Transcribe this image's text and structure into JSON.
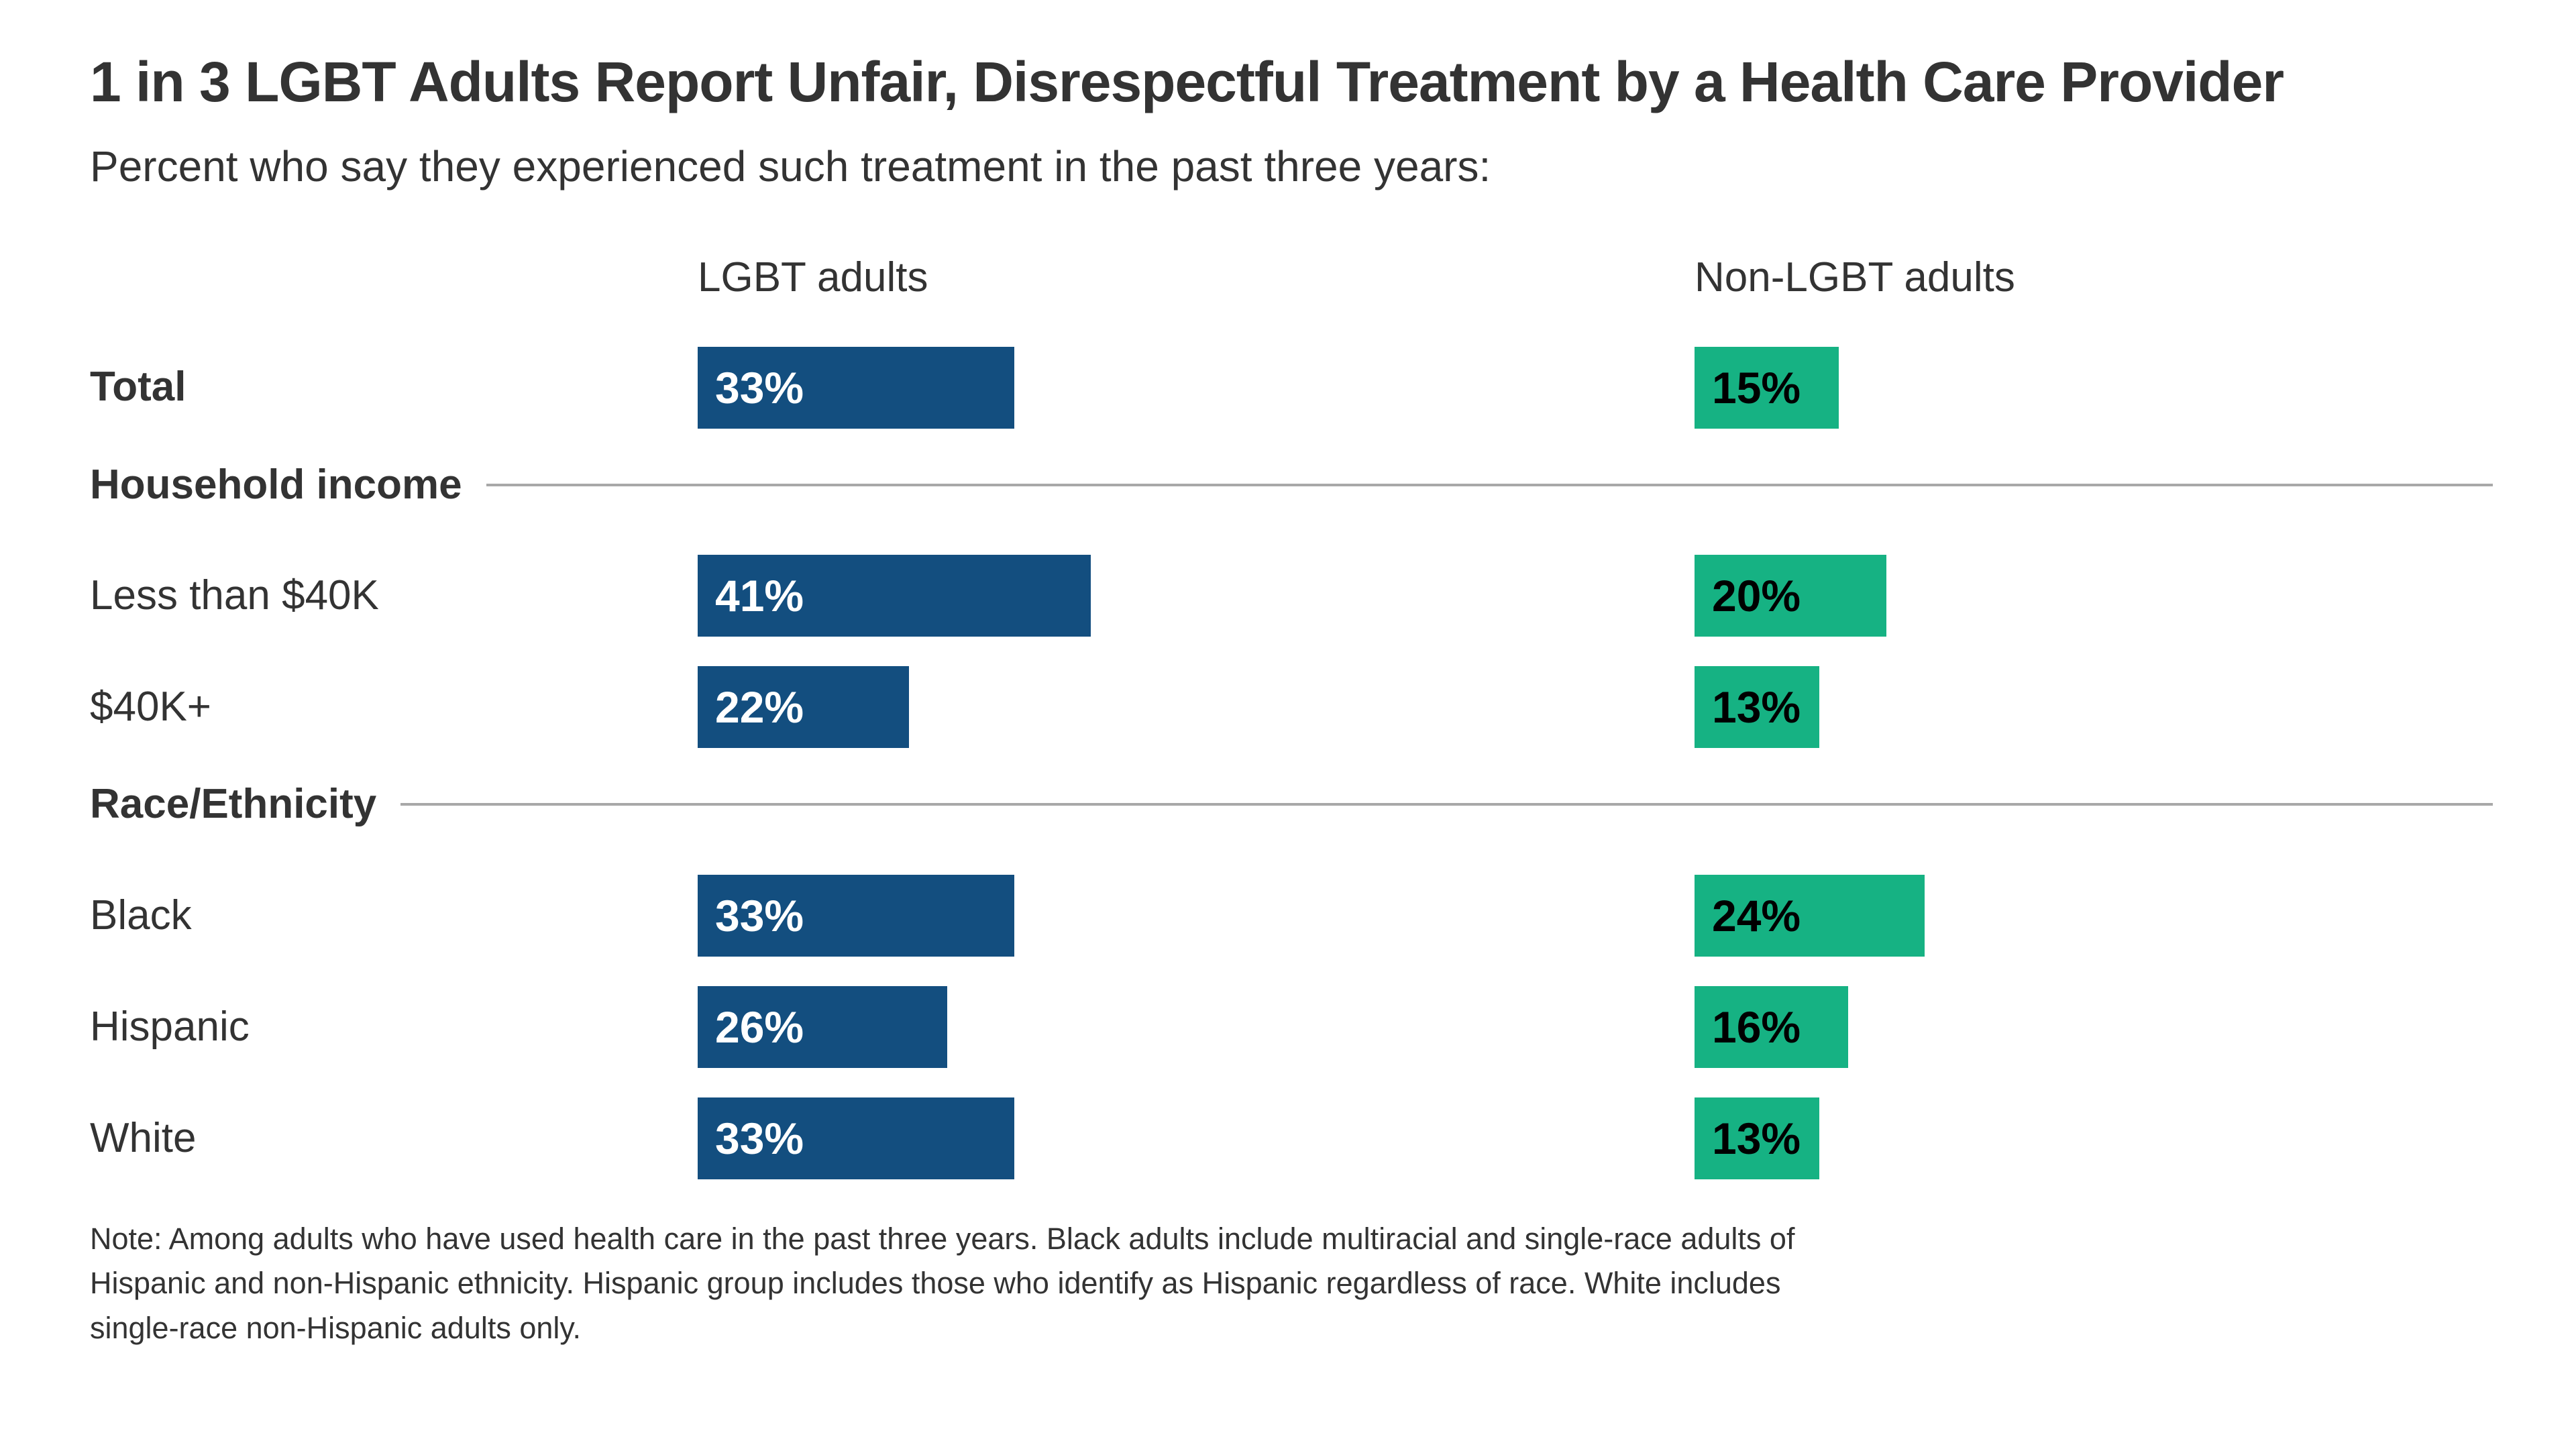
{
  "colors": {
    "text": "#333333",
    "divider": "#A8A8A8",
    "lgbt_bar": "#134E7F",
    "lgbt_bar_label": "#FFFFFF",
    "non_lgbt_bar": "#16B283",
    "non_lgbt_bar_label": "#000000",
    "background": "#FFFFFF"
  },
  "chart_data": {
    "type": "bar",
    "orientation": "horizontal",
    "title": "1 in 3 LGBT Adults Report Unfair, Disrespectful Treatment by a Health Care Provider",
    "subtitle": "Percent who say they experienced such treatment in the past three years:",
    "value_unit": "percent",
    "value_suffix": "%",
    "grid": false,
    "axes": "none (values labeled directly on bars)",
    "legend_position": "column headers above each bar column",
    "series": [
      {
        "name": "LGBT adults",
        "color": "#134E7F",
        "label_color": "#FFFFFF"
      },
      {
        "name": "Non-LGBT adults",
        "color": "#16B283",
        "label_color": "#000000"
      }
    ],
    "groups": [
      {
        "section": null,
        "rows": [
          {
            "label": "Total",
            "values": [
              33,
              15
            ]
          }
        ]
      },
      {
        "section": "Household income",
        "rows": [
          {
            "label": "Less than $40K",
            "values": [
              41,
              20
            ]
          },
          {
            "label": "$40K+",
            "values": [
              22,
              13
            ]
          }
        ]
      },
      {
        "section": "Race/Ethnicity",
        "rows": [
          {
            "label": "Black",
            "values": [
              33,
              24
            ]
          },
          {
            "label": "Hispanic",
            "values": [
              26,
              16
            ]
          },
          {
            "label": "White",
            "values": [
              33,
              13
            ]
          }
        ]
      }
    ],
    "note_lines": [
      "Note: Among adults who have used health care in the past three years. Black adults include multiracial and single-race adults of",
      "Hispanic and non-Hispanic ethnicity. Hispanic group includes those who identify as Hispanic regardless of race. White includes",
      "single-race non-Hispanic adults only."
    ]
  }
}
